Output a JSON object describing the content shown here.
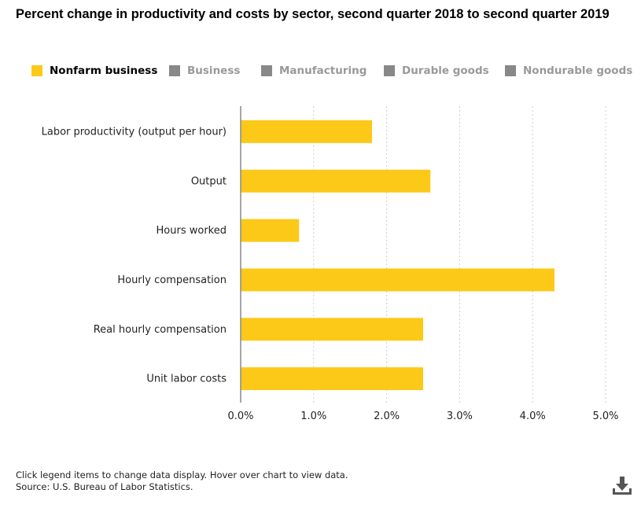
{
  "chart_data": {
    "type": "bar",
    "orientation": "horizontal",
    "title": "Percent change in productivity and costs by sector, second quarter 2018 to second quarter 2019",
    "categories": [
      "Labor productivity (output per hour)",
      "Output",
      "Hours worked",
      "Hourly compensation",
      "Real hourly compensation",
      "Unit labor costs"
    ],
    "series": [
      {
        "name": "Nonfarm business",
        "values": [
          1.8,
          2.6,
          0.8,
          4.3,
          2.5,
          2.5
        ],
        "visible": true
      },
      {
        "name": "Business",
        "values": null,
        "visible": false
      },
      {
        "name": "Manufacturing",
        "values": null,
        "visible": false
      },
      {
        "name": "Durable goods",
        "values": null,
        "visible": false
      },
      {
        "name": "Nondurable goods",
        "values": null,
        "visible": false
      }
    ],
    "xlim": [
      0,
      5
    ],
    "x_ticks": [
      "0.0%",
      "1.0%",
      "2.0%",
      "3.0%",
      "4.0%",
      "5.0%"
    ],
    "grid": true,
    "legend_position": "top"
  },
  "legend": [
    {
      "label": "Nonfarm business",
      "color": "#fcc918",
      "active": true
    },
    {
      "label": "Business",
      "color": "#888888",
      "active": false
    },
    {
      "label": "Manufacturing",
      "color": "#888888",
      "active": false
    },
    {
      "label": "Durable goods",
      "color": "#888888",
      "active": false
    },
    {
      "label": "Nondurable goods",
      "color": "#888888",
      "active": false
    }
  ],
  "footnote": {
    "line1": "Click legend items to change data display. Hover over chart to view data.",
    "line2": "Source: U.S. Bureau of Labor Statistics."
  },
  "colors": {
    "bar": "#fcc918",
    "axis": "#888888",
    "grid": "#cccccc"
  },
  "icons": {
    "download": "download-icon"
  }
}
